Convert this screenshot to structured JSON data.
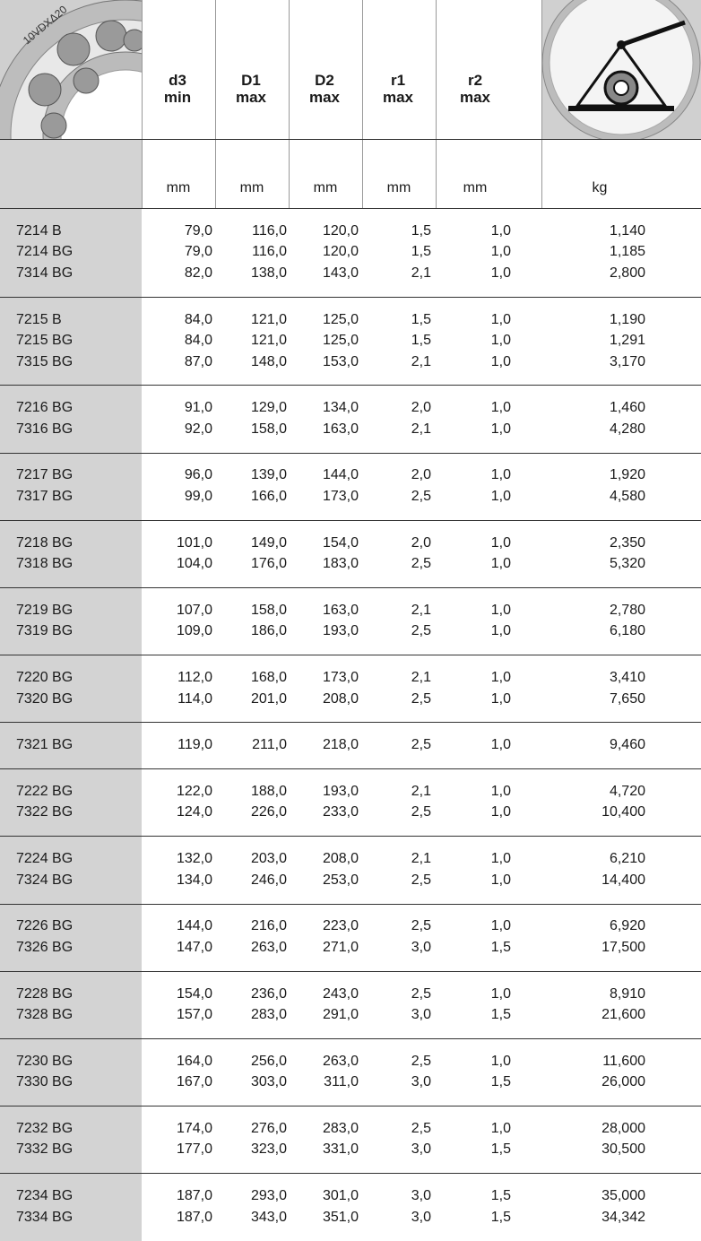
{
  "header": {
    "image_label": "10VDXΔ20",
    "columns": [
      {
        "line1": "d3",
        "line2": "min"
      },
      {
        "line1": "D1",
        "line2": "max"
      },
      {
        "line1": "D2",
        "line2": "max"
      },
      {
        "line1": "r1",
        "line2": "max"
      },
      {
        "line1": "r2",
        "line2": "max"
      }
    ],
    "units": [
      "mm",
      "mm",
      "mm",
      "mm",
      "mm",
      "kg"
    ]
  },
  "groups": [
    [
      [
        "7214 B",
        "79,0",
        "116,0",
        "120,0",
        "1,5",
        "1,0",
        "1,140"
      ],
      [
        "7214 BG",
        "79,0",
        "116,0",
        "120,0",
        "1,5",
        "1,0",
        "1,185"
      ],
      [
        "7314 BG",
        "82,0",
        "138,0",
        "143,0",
        "2,1",
        "1,0",
        "2,800"
      ]
    ],
    [
      [
        "7215 B",
        "84,0",
        "121,0",
        "125,0",
        "1,5",
        "1,0",
        "1,190"
      ],
      [
        "7215 BG",
        "84,0",
        "121,0",
        "125,0",
        "1,5",
        "1,0",
        "1,291"
      ],
      [
        "7315 BG",
        "87,0",
        "148,0",
        "153,0",
        "2,1",
        "1,0",
        "3,170"
      ]
    ],
    [
      [
        "7216 BG",
        "91,0",
        "129,0",
        "134,0",
        "2,0",
        "1,0",
        "1,460"
      ],
      [
        "7316 BG",
        "92,0",
        "158,0",
        "163,0",
        "2,1",
        "1,0",
        "4,280"
      ]
    ],
    [
      [
        "7217 BG",
        "96,0",
        "139,0",
        "144,0",
        "2,0",
        "1,0",
        "1,920"
      ],
      [
        "7317 BG",
        "99,0",
        "166,0",
        "173,0",
        "2,5",
        "1,0",
        "4,580"
      ]
    ],
    [
      [
        "7218 BG",
        "101,0",
        "149,0",
        "154,0",
        "2,0",
        "1,0",
        "2,350"
      ],
      [
        "7318 BG",
        "104,0",
        "176,0",
        "183,0",
        "2,5",
        "1,0",
        "5,320"
      ]
    ],
    [
      [
        "7219 BG",
        "107,0",
        "158,0",
        "163,0",
        "2,1",
        "1,0",
        "2,780"
      ],
      [
        "7319 BG",
        "109,0",
        "186,0",
        "193,0",
        "2,5",
        "1,0",
        "6,180"
      ]
    ],
    [
      [
        "7220 BG",
        "112,0",
        "168,0",
        "173,0",
        "2,1",
        "1,0",
        "3,410"
      ],
      [
        "7320 BG",
        "114,0",
        "201,0",
        "208,0",
        "2,5",
        "1,0",
        "7,650"
      ]
    ],
    [
      [
        "7321 BG",
        "119,0",
        "211,0",
        "218,0",
        "2,5",
        "1,0",
        "9,460"
      ]
    ],
    [
      [
        "7222 BG",
        "122,0",
        "188,0",
        "193,0",
        "2,1",
        "1,0",
        "4,720"
      ],
      [
        "7322 BG",
        "124,0",
        "226,0",
        "233,0",
        "2,5",
        "1,0",
        "10,400"
      ]
    ],
    [
      [
        "7224 BG",
        "132,0",
        "203,0",
        "208,0",
        "2,1",
        "1,0",
        "6,210"
      ],
      [
        "7324 BG",
        "134,0",
        "246,0",
        "253,0",
        "2,5",
        "1,0",
        "14,400"
      ]
    ],
    [
      [
        "7226 BG",
        "144,0",
        "216,0",
        "223,0",
        "2,5",
        "1,0",
        "6,920"
      ],
      [
        "7326 BG",
        "147,0",
        "263,0",
        "271,0",
        "3,0",
        "1,5",
        "17,500"
      ]
    ],
    [
      [
        "7228 BG",
        "154,0",
        "236,0",
        "243,0",
        "2,5",
        "1,0",
        "8,910"
      ],
      [
        "7328 BG",
        "157,0",
        "283,0",
        "291,0",
        "3,0",
        "1,5",
        "21,600"
      ]
    ],
    [
      [
        "7230 BG",
        "164,0",
        "256,0",
        "263,0",
        "2,5",
        "1,0",
        "11,600"
      ],
      [
        "7330 BG",
        "167,0",
        "303,0",
        "311,0",
        "3,0",
        "1,5",
        "26,000"
      ]
    ],
    [
      [
        "7232 BG",
        "174,0",
        "276,0",
        "283,0",
        "2,5",
        "1,0",
        "28,000"
      ],
      [
        "7332 BG",
        "177,0",
        "323,0",
        "331,0",
        "3,0",
        "1,5",
        "30,500"
      ]
    ],
    [
      [
        "7234 BG",
        "187,0",
        "293,0",
        "301,0",
        "3,0",
        "1,5",
        "35,000"
      ],
      [
        "7334 BG",
        "187,0",
        "343,0",
        "351,0",
        "3,0",
        "1,5",
        "34,342"
      ]
    ]
  ]
}
